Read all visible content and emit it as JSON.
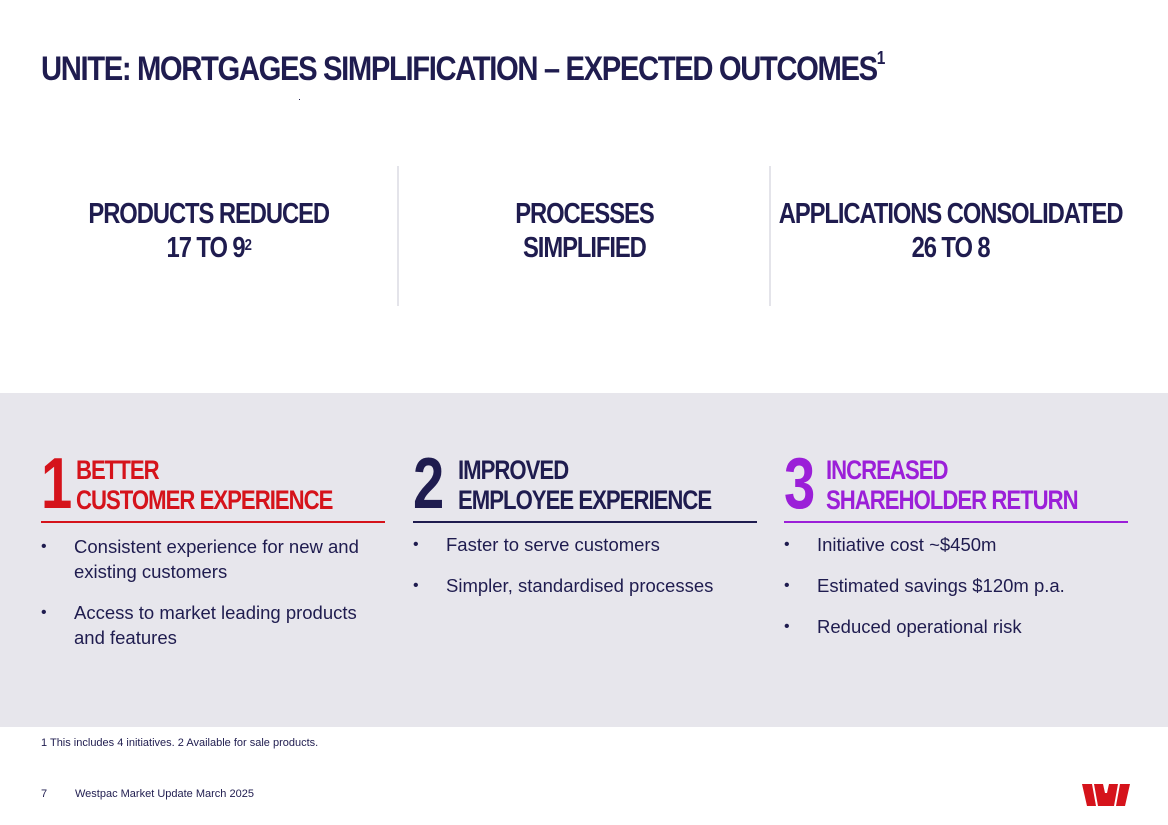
{
  "title": {
    "text": "UNITE: MORTGAGES SIMPLIFICATION – EXPECTED OUTCOMES",
    "sup": "1"
  },
  "stats": [
    {
      "line1": "PRODUCTS REDUCED",
      "line2": "17 TO 9",
      "sup": "2"
    },
    {
      "line1": "PROCESSES",
      "line2": "SIMPLIFIED",
      "sup": ""
    },
    {
      "line1": "APPLICATIONS CONSOLIDATED",
      "line2": "26 TO 8",
      "sup": ""
    }
  ],
  "outcomes": [
    {
      "number": "1",
      "heading_line1": "BETTER",
      "heading_line2": "CUSTOMER EXPERIENCE",
      "color": "#d5131b",
      "bullets": [
        "Consistent experience for new and existing customers",
        "Access to market leading products and features"
      ]
    },
    {
      "number": "2",
      "heading_line1": "IMPROVED",
      "heading_line2": "EMPLOYEE EXPERIENCE",
      "color": "#1f1c4f",
      "bullets": [
        "Faster to serve customers",
        "Simpler, standardised processes"
      ]
    },
    {
      "number": "3",
      "heading_line1": "INCREASED",
      "heading_line2": "SHAREHOLDER RETURN",
      "color": "#9b1fd8",
      "bullets": [
        "Initiative cost ~$450m",
        "Estimated savings $120m p.a.",
        "Reduced operational risk"
      ]
    }
  ],
  "footnote": "1 This includes 4 initiatives. 2 Available for sale products.",
  "footer": {
    "page": "7",
    "text": "Westpac Market Update March 2025"
  },
  "logo": {
    "icon": "westpac-w-logo",
    "color": "#d5131b"
  }
}
